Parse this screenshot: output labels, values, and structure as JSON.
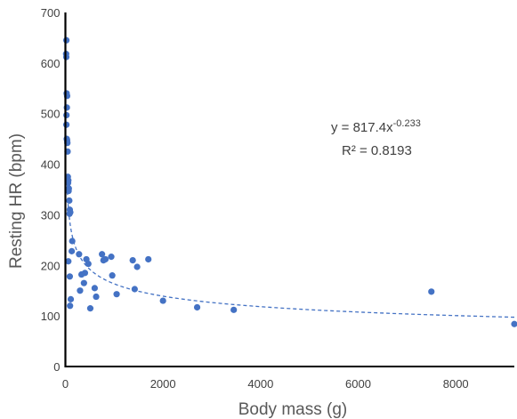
{
  "chart_data": {
    "type": "scatter",
    "xlabel": "Body mass (g)",
    "ylabel": "Resting HR (bpm)",
    "xlim": [
      0,
      9200
    ],
    "ylim": [
      0,
      700
    ],
    "x_ticks": [
      0,
      2000,
      4000,
      6000,
      8000
    ],
    "y_ticks": [
      0,
      100,
      200,
      300,
      400,
      500,
      600,
      700
    ],
    "grid": false,
    "marker_color": "#4472C4",
    "trendline": {
      "type": "power",
      "a": 817.4,
      "b": -0.233,
      "style": "dashed",
      "color": "#4472C4"
    },
    "equation": {
      "prefix": "y = 817.4x",
      "exponent": "-0.233",
      "r2": "R² = 0.8193"
    },
    "points": [
      {
        "x": 20,
        "y": 645
      },
      {
        "x": 15,
        "y": 618
      },
      {
        "x": 18,
        "y": 612
      },
      {
        "x": 25,
        "y": 540
      },
      {
        "x": 35,
        "y": 535
      },
      {
        "x": 30,
        "y": 512
      },
      {
        "x": 22,
        "y": 497
      },
      {
        "x": 20,
        "y": 478
      },
      {
        "x": 28,
        "y": 450
      },
      {
        "x": 35,
        "y": 447
      },
      {
        "x": 40,
        "y": 442
      },
      {
        "x": 45,
        "y": 425
      },
      {
        "x": 50,
        "y": 375
      },
      {
        "x": 60,
        "y": 368
      },
      {
        "x": 55,
        "y": 363
      },
      {
        "x": 70,
        "y": 352
      },
      {
        "x": 65,
        "y": 347
      },
      {
        "x": 80,
        "y": 328
      },
      {
        "x": 90,
        "y": 310
      },
      {
        "x": 85,
        "y": 302
      },
      {
        "x": 100,
        "y": 305
      },
      {
        "x": 140,
        "y": 248
      },
      {
        "x": 130,
        "y": 228
      },
      {
        "x": 280,
        "y": 222
      },
      {
        "x": 60,
        "y": 208
      },
      {
        "x": 90,
        "y": 178
      },
      {
        "x": 110,
        "y": 133
      },
      {
        "x": 95,
        "y": 120
      },
      {
        "x": 300,
        "y": 150
      },
      {
        "x": 330,
        "y": 182
      },
      {
        "x": 400,
        "y": 185
      },
      {
        "x": 380,
        "y": 165
      },
      {
        "x": 430,
        "y": 212
      },
      {
        "x": 470,
        "y": 203
      },
      {
        "x": 510,
        "y": 115
      },
      {
        "x": 600,
        "y": 155
      },
      {
        "x": 630,
        "y": 138
      },
      {
        "x": 750,
        "y": 222
      },
      {
        "x": 780,
        "y": 210
      },
      {
        "x": 820,
        "y": 212
      },
      {
        "x": 940,
        "y": 217
      },
      {
        "x": 960,
        "y": 180
      },
      {
        "x": 1050,
        "y": 143
      },
      {
        "x": 1380,
        "y": 210
      },
      {
        "x": 1420,
        "y": 153
      },
      {
        "x": 1470,
        "y": 197
      },
      {
        "x": 1700,
        "y": 212
      },
      {
        "x": 2000,
        "y": 130
      },
      {
        "x": 2700,
        "y": 117
      },
      {
        "x": 3450,
        "y": 112
      },
      {
        "x": 7500,
        "y": 148
      },
      {
        "x": 9200,
        "y": 84
      }
    ]
  }
}
